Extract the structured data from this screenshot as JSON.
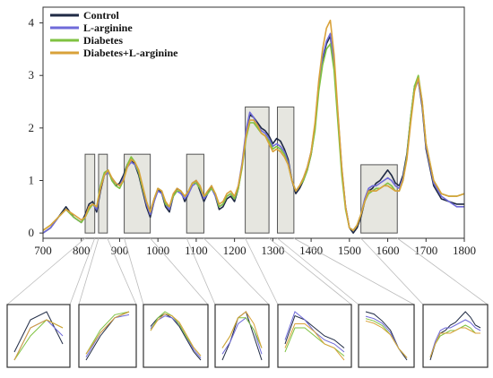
{
  "colors": {
    "Control": "#1f2a44",
    "L-arginine": "#6f6ad9",
    "Diabetes": "#7fc241",
    "Diabetes+L-arginine": "#d9a23a",
    "region_fill": "#e6e6e0",
    "region_stroke": "#555555"
  },
  "chart_data": {
    "type": "line",
    "title": "",
    "xlabel": "",
    "ylabel": "",
    "xlim": [
      700,
      1800
    ],
    "ylim": [
      -0.1,
      4.3
    ],
    "xticks": [
      "700",
      "800",
      "900",
      "1000",
      "1100",
      "1200",
      "1300",
      "1400",
      "1500",
      "1600",
      "1700",
      "1800"
    ],
    "yticks": [
      "0",
      "1",
      "2",
      "3",
      "4"
    ],
    "legend": {
      "position": "top-left",
      "entries": [
        "Control",
        "L-arginine",
        "Diabetes",
        "Diabetes+L-arginine"
      ]
    },
    "highlighted_regions": [
      {
        "x": [
          810,
          835
        ],
        "height": 1.5
      },
      {
        "x": [
          845,
          868
        ],
        "height": 1.5
      },
      {
        "x": [
          912,
          980
        ],
        "height": 1.5
      },
      {
        "x": [
          1075,
          1120
        ],
        "height": 1.5
      },
      {
        "x": [
          1228,
          1290
        ],
        "height": 2.4
      },
      {
        "x": [
          1312,
          1355
        ],
        "height": 2.4
      },
      {
        "x": [
          1530,
          1625
        ],
        "height": 1.3
      }
    ],
    "x": [
      700,
      720,
      740,
      760,
      780,
      800,
      810,
      820,
      830,
      840,
      850,
      860,
      870,
      880,
      890,
      900,
      910,
      920,
      930,
      940,
      950,
      960,
      970,
      980,
      990,
      1000,
      1010,
      1020,
      1030,
      1040,
      1050,
      1060,
      1070,
      1080,
      1090,
      1100,
      1110,
      1120,
      1130,
      1140,
      1150,
      1160,
      1170,
      1180,
      1190,
      1200,
      1210,
      1220,
      1230,
      1240,
      1250,
      1260,
      1270,
      1280,
      1290,
      1300,
      1310,
      1320,
      1330,
      1340,
      1350,
      1360,
      1370,
      1380,
      1390,
      1400,
      1410,
      1420,
      1430,
      1440,
      1450,
      1460,
      1470,
      1480,
      1490,
      1500,
      1510,
      1520,
      1530,
      1540,
      1550,
      1560,
      1570,
      1580,
      1590,
      1600,
      1610,
      1620,
      1630,
      1640,
      1650,
      1660,
      1670,
      1680,
      1690,
      1700,
      1720,
      1740,
      1760,
      1780,
      1800
    ],
    "series": [
      {
        "name": "Control",
        "values": [
          0.0,
          0.1,
          0.3,
          0.5,
          0.3,
          0.2,
          0.35,
          0.55,
          0.6,
          0.4,
          0.8,
          1.1,
          1.2,
          1.0,
          0.9,
          0.95,
          1.1,
          1.3,
          1.4,
          1.3,
          1.1,
          0.8,
          0.5,
          0.3,
          0.6,
          0.85,
          0.75,
          0.5,
          0.4,
          0.7,
          0.85,
          0.8,
          0.6,
          0.75,
          0.95,
          1.0,
          0.8,
          0.6,
          0.75,
          0.9,
          0.7,
          0.45,
          0.5,
          0.65,
          0.7,
          0.6,
          0.85,
          1.3,
          1.9,
          2.25,
          2.2,
          2.1,
          2.0,
          1.95,
          1.85,
          1.7,
          1.8,
          1.75,
          1.6,
          1.4,
          1.0,
          0.75,
          0.85,
          1.0,
          1.2,
          1.5,
          2.0,
          2.8,
          3.3,
          3.6,
          3.75,
          3.2,
          2.2,
          1.2,
          0.5,
          0.1,
          0.0,
          0.1,
          0.3,
          0.6,
          0.8,
          0.85,
          0.95,
          1.0,
          1.1,
          1.2,
          1.1,
          0.95,
          0.9,
          1.1,
          1.5,
          2.2,
          2.8,
          2.9,
          2.4,
          1.6,
          0.9,
          0.65,
          0.6,
          0.55,
          0.55
        ]
      },
      {
        "name": "L-arginine",
        "values": [
          0.0,
          0.1,
          0.3,
          0.45,
          0.3,
          0.2,
          0.3,
          0.5,
          0.55,
          0.45,
          0.85,
          1.1,
          1.15,
          1.05,
          0.95,
          0.9,
          1.05,
          1.25,
          1.35,
          1.3,
          1.15,
          0.85,
          0.55,
          0.35,
          0.6,
          0.8,
          0.75,
          0.55,
          0.45,
          0.7,
          0.8,
          0.75,
          0.65,
          0.75,
          0.9,
          0.95,
          0.85,
          0.65,
          0.75,
          0.85,
          0.7,
          0.5,
          0.55,
          0.7,
          0.75,
          0.65,
          0.9,
          1.35,
          1.95,
          2.3,
          2.2,
          2.05,
          1.95,
          1.9,
          1.8,
          1.65,
          1.7,
          1.65,
          1.55,
          1.35,
          1.0,
          0.8,
          0.9,
          1.05,
          1.25,
          1.55,
          2.05,
          2.85,
          3.35,
          3.65,
          3.8,
          3.25,
          2.25,
          1.25,
          0.5,
          0.1,
          0.05,
          0.15,
          0.35,
          0.65,
          0.85,
          0.9,
          0.9,
          0.95,
          1.0,
          1.05,
          1.0,
          0.9,
          0.85,
          1.05,
          1.45,
          2.15,
          2.75,
          2.9,
          2.45,
          1.65,
          0.95,
          0.7,
          0.6,
          0.5,
          0.5
        ]
      },
      {
        "name": "Diabetes",
        "values": [
          0.05,
          0.15,
          0.3,
          0.45,
          0.3,
          0.2,
          0.3,
          0.45,
          0.55,
          0.5,
          0.9,
          1.15,
          1.2,
          1.0,
          0.9,
          0.85,
          1.0,
          1.3,
          1.45,
          1.35,
          1.15,
          0.85,
          0.6,
          0.4,
          0.65,
          0.85,
          0.8,
          0.55,
          0.5,
          0.7,
          0.8,
          0.8,
          0.7,
          0.8,
          0.95,
          0.95,
          0.85,
          0.7,
          0.75,
          0.85,
          0.75,
          0.5,
          0.55,
          0.7,
          0.75,
          0.65,
          0.85,
          1.25,
          1.8,
          2.1,
          2.1,
          2.0,
          1.9,
          1.85,
          1.75,
          1.6,
          1.65,
          1.6,
          1.5,
          1.3,
          1.0,
          0.8,
          0.9,
          1.0,
          1.2,
          1.5,
          1.95,
          2.7,
          3.2,
          3.5,
          3.6,
          3.1,
          2.1,
          1.1,
          0.45,
          0.1,
          0.05,
          0.15,
          0.35,
          0.6,
          0.75,
          0.8,
          0.85,
          0.85,
          0.9,
          0.95,
          0.9,
          0.8,
          0.8,
          1.0,
          1.45,
          2.2,
          2.8,
          3.0,
          2.5,
          1.7,
          1.0,
          0.75,
          0.7,
          0.7,
          0.75
        ]
      },
      {
        "name": "Diabetes+L-arginine",
        "values": [
          0.05,
          0.15,
          0.3,
          0.45,
          0.35,
          0.25,
          0.3,
          0.5,
          0.55,
          0.5,
          0.85,
          1.1,
          1.2,
          1.05,
          0.95,
          0.9,
          1.0,
          1.25,
          1.4,
          1.35,
          1.2,
          0.9,
          0.6,
          0.4,
          0.65,
          0.85,
          0.8,
          0.6,
          0.5,
          0.75,
          0.85,
          0.8,
          0.7,
          0.8,
          0.95,
          1.0,
          0.9,
          0.7,
          0.8,
          0.9,
          0.75,
          0.55,
          0.6,
          0.75,
          0.8,
          0.7,
          0.9,
          1.3,
          1.85,
          2.15,
          2.15,
          2.05,
          1.9,
          1.85,
          1.7,
          1.55,
          1.6,
          1.55,
          1.45,
          1.3,
          1.0,
          0.8,
          0.9,
          1.05,
          1.25,
          1.55,
          2.1,
          2.9,
          3.5,
          3.9,
          4.05,
          3.4,
          2.3,
          1.25,
          0.5,
          0.1,
          0.05,
          0.15,
          0.35,
          0.6,
          0.8,
          0.8,
          0.8,
          0.85,
          0.9,
          0.9,
          0.85,
          0.8,
          0.8,
          1.0,
          1.4,
          2.1,
          2.7,
          2.95,
          2.5,
          1.7,
          1.0,
          0.75,
          0.7,
          0.7,
          0.75
        ]
      }
    ]
  }
}
